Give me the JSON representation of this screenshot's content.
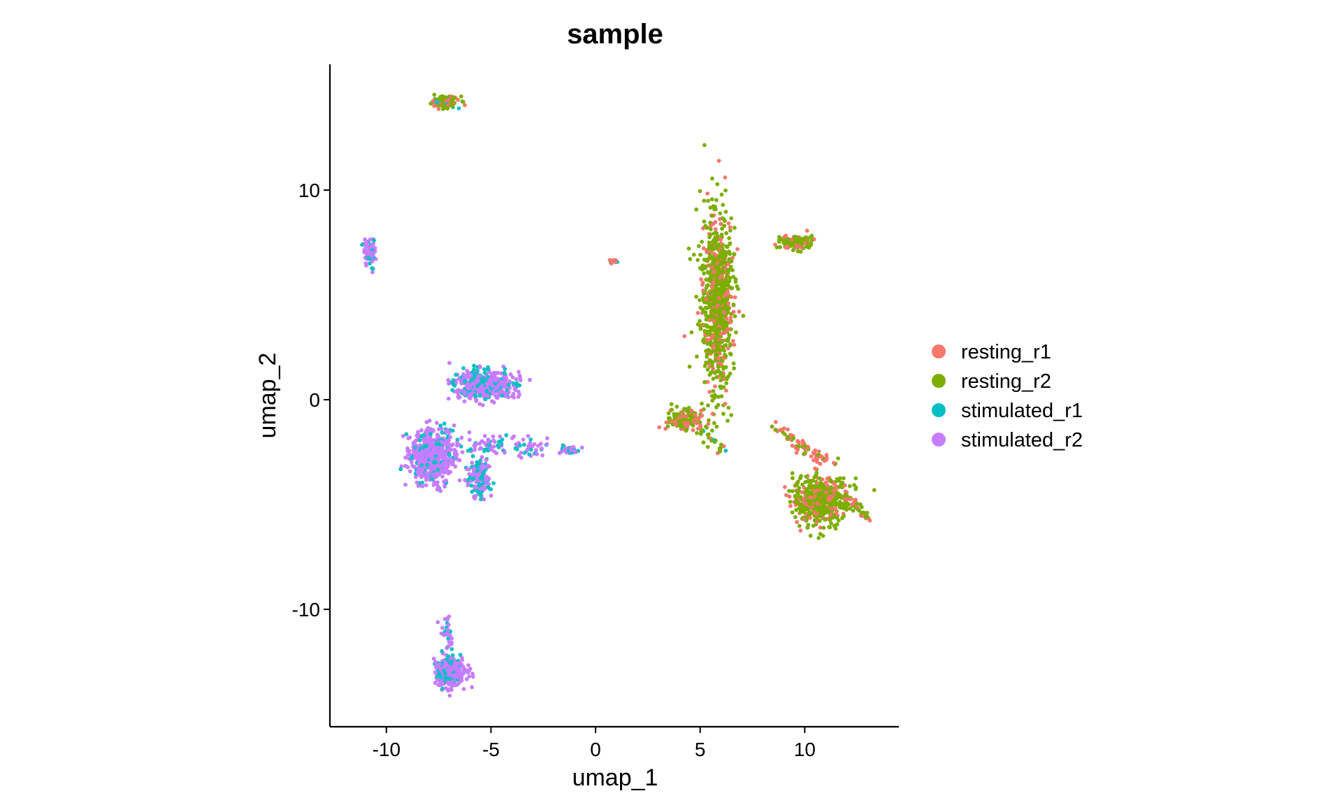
{
  "chart_data": {
    "type": "scatter",
    "title": "sample",
    "xlabel": "umap_1",
    "ylabel": "umap_2",
    "xlim": [
      -12.7,
      14.5
    ],
    "ylim": [
      -15.6,
      16.0
    ],
    "xticks": [
      -10,
      -5,
      0,
      5,
      10
    ],
    "yticks": [
      -10,
      0,
      10
    ],
    "xtick_labels": [
      "-10",
      "-5",
      "0",
      "5",
      "10"
    ],
    "ytick_labels": [
      "-10",
      "0",
      "10"
    ],
    "grid": false,
    "legend_position": "right",
    "series": [
      {
        "name": "resting_r1",
        "color": "#F8766D"
      },
      {
        "name": "resting_r2",
        "color": "#7CAE00"
      },
      {
        "name": "stimulated_r1",
        "color": "#00BFC4"
      },
      {
        "name": "stimulated_r2",
        "color": "#C77CFF"
      }
    ],
    "clusters": [
      {
        "series": [
          "resting_r2",
          "resting_r1",
          "stimulated_r1"
        ],
        "cx": -7.2,
        "cy": 14.2,
        "sx": 0.6,
        "sy": 0.25,
        "n": 120,
        "shape": "ellipse"
      },
      {
        "series": [
          "resting_r2",
          "resting_r1"
        ],
        "cx": 5.8,
        "cy": 4.8,
        "sx": 0.7,
        "sy": 3.8,
        "n": 900,
        "shape": "ellipse"
      },
      {
        "series": [
          "resting_r2",
          "resting_r1"
        ],
        "cx": 9.6,
        "cy": 7.5,
        "sx": 0.7,
        "sy": 0.3,
        "n": 120,
        "shape": "ellipse"
      },
      {
        "series": [
          "resting_r2",
          "resting_r1"
        ],
        "cx": 4.2,
        "cy": -1.0,
        "sx": 0.7,
        "sy": 0.5,
        "n": 150,
        "shape": "ellipse"
      },
      {
        "series": [
          "resting_r2",
          "resting_r1"
        ],
        "cx": 10.8,
        "cy": -4.8,
        "sx": 1.2,
        "sy": 1.1,
        "n": 550,
        "shape": "ellipse"
      },
      {
        "series": [
          "resting_r1",
          "resting_r2"
        ],
        "x1": 8.5,
        "y1": -1.3,
        "x2": 11.0,
        "y2": -3.0,
        "n": 70,
        "shape": "line",
        "spread": 0.15
      },
      {
        "series": [
          "resting_r1",
          "resting_r2"
        ],
        "x1": 12.3,
        "y1": -4.8,
        "x2": 13.1,
        "y2": -5.8,
        "n": 25,
        "shape": "line",
        "spread": 0.1
      },
      {
        "series": [
          "resting_r2",
          "resting_r1",
          "stimulated_r1"
        ],
        "x1": 4.8,
        "y1": -1.3,
        "x2": 6.4,
        "y2": -2.6,
        "n": 25,
        "shape": "line",
        "spread": 0.15
      },
      {
        "series": [
          "resting_r1",
          "stimulated_r1",
          "stimulated_r2",
          "resting_r2"
        ],
        "cx": 0.8,
        "cy": 6.6,
        "sx": 0.2,
        "sy": 0.1,
        "n": 10,
        "shape": "ellipse"
      },
      {
        "series": [
          "stimulated_r2",
          "stimulated_r1"
        ],
        "cx": -10.8,
        "cy": 7.1,
        "sx": 0.22,
        "sy": 0.6,
        "n": 90,
        "shape": "ellipse"
      },
      {
        "series": [
          "stimulated_r2",
          "stimulated_r1"
        ],
        "cx": -5.3,
        "cy": 0.7,
        "sx": 1.3,
        "sy": 0.6,
        "n": 500,
        "shape": "ellipse"
      },
      {
        "series": [
          "stimulated_r2",
          "stimulated_r1"
        ],
        "cx": -7.8,
        "cy": -2.7,
        "sx": 1.0,
        "sy": 1.2,
        "n": 600,
        "shape": "ellipse"
      },
      {
        "series": [
          "stimulated_r2",
          "stimulated_r1"
        ],
        "cx": -5.6,
        "cy": -3.8,
        "sx": 0.5,
        "sy": 0.8,
        "n": 150,
        "shape": "ellipse"
      },
      {
        "series": [
          "stimulated_r2",
          "stimulated_r1"
        ],
        "x1": -6.0,
        "y1": -2.0,
        "x2": -2.5,
        "y2": -2.4,
        "n": 90,
        "shape": "line",
        "spread": 0.25
      },
      {
        "series": [
          "stimulated_r2",
          "stimulated_r1"
        ],
        "cx": -1.2,
        "cy": -2.4,
        "sx": 0.4,
        "sy": 0.15,
        "n": 50,
        "shape": "ellipse"
      },
      {
        "series": [
          "stimulated_r2",
          "stimulated_r1"
        ],
        "cx": -7.0,
        "cy": -13.0,
        "sx": 0.7,
        "sy": 0.6,
        "n": 280,
        "shape": "ellipse"
      },
      {
        "series": [
          "stimulated_r2",
          "stimulated_r1"
        ],
        "x1": -7.2,
        "y1": -10.4,
        "x2": -7.0,
        "y2": -12.3,
        "n": 40,
        "shape": "line",
        "spread": 0.15
      }
    ]
  }
}
